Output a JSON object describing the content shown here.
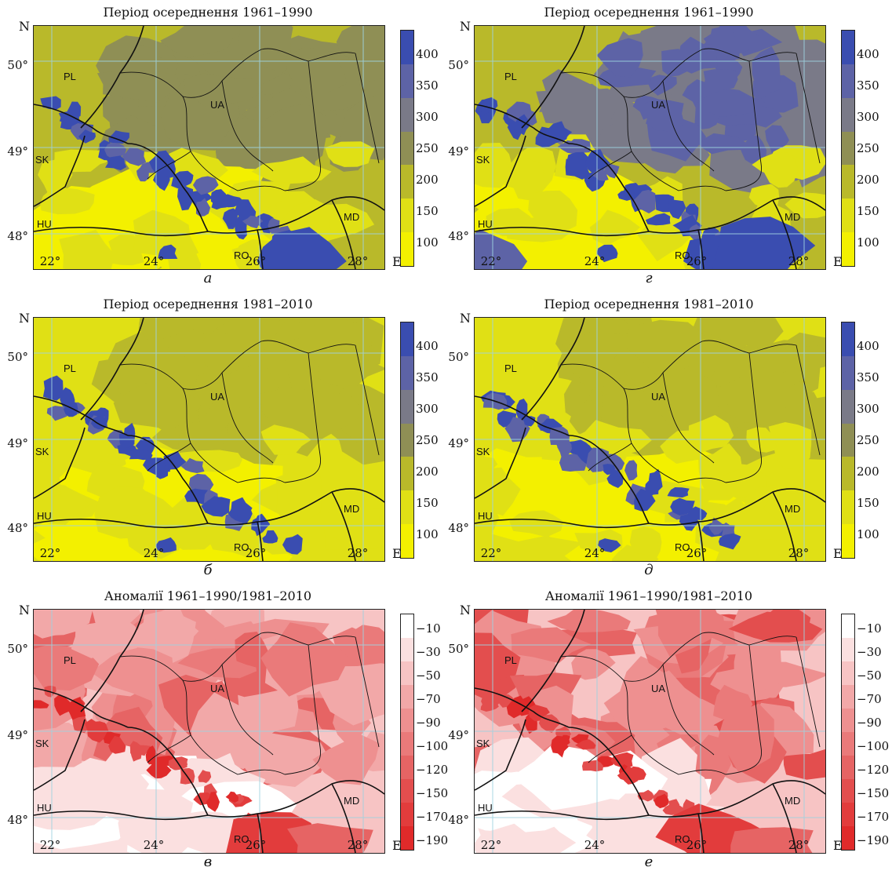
{
  "axes": {
    "north": "N",
    "east": "E",
    "lat_ticks": [
      "50°",
      "49°",
      "48°"
    ],
    "lon_ticks": [
      "22°",
      "24°",
      "26°",
      "28°"
    ]
  },
  "countries": [
    "PL",
    "UA",
    "SK",
    "HU",
    "MD",
    "RO"
  ],
  "panels": [
    {
      "title": "Період осереднення 1961–1990",
      "label": "а",
      "type": "mean",
      "colorbar_ticks": [
        "400",
        "350",
        "300",
        "250",
        "200",
        "150",
        "100"
      ]
    },
    {
      "title": "Період осереднення 1961–1990",
      "label": "г",
      "type": "mean",
      "colorbar_ticks": [
        "400",
        "350",
        "300",
        "250",
        "200",
        "150",
        "100"
      ]
    },
    {
      "title": "Період осереднення 1981–2010",
      "label": "б",
      "type": "mean",
      "colorbar_ticks": [
        "400",
        "350",
        "300",
        "250",
        "200",
        "150",
        "100"
      ]
    },
    {
      "title": "Період осереднення 1981–2010",
      "label": "д",
      "type": "mean",
      "colorbar_ticks": [
        "400",
        "350",
        "300",
        "250",
        "200",
        "150",
        "100"
      ]
    },
    {
      "title": "Аномалії 1961–1990/1981–2010",
      "label": "в",
      "type": "anomaly",
      "colorbar_ticks": [
        "−10",
        "−30",
        "−50",
        "−70",
        "−90",
        "−100",
        "−120",
        "−150",
        "−170",
        "−190"
      ]
    },
    {
      "title": "Аномалії 1961–1990/1981–2010",
      "label": "е",
      "type": "anomaly",
      "colorbar_ticks": [
        "−10",
        "−30",
        "−50",
        "−70",
        "−90",
        "−100",
        "−120",
        "−150",
        "−170",
        "−190"
      ]
    }
  ],
  "colors": {
    "mean_scale": [
      "#3a4db0",
      "#5d63a6",
      "#7a7a88",
      "#8f8f55",
      "#b9b92a",
      "#e0e015",
      "#f3f000"
    ],
    "anomaly_scale": [
      "#ffffff",
      "#fbe0e0",
      "#f7c4c4",
      "#f2a8a8",
      "#ee9090",
      "#ea7a7a",
      "#e66464",
      "#e34e4e",
      "#e23c3c",
      "#e02a2a"
    ]
  }
}
